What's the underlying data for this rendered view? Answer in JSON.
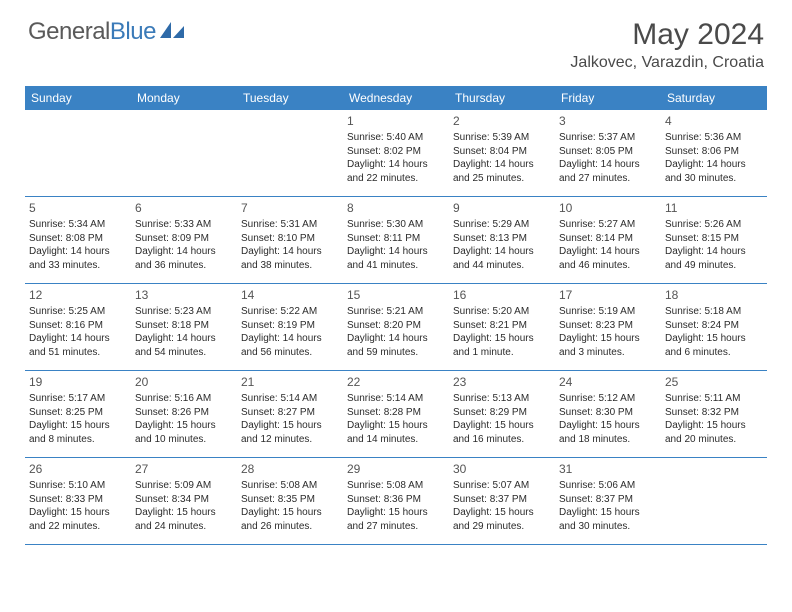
{
  "brand": {
    "text1": "General",
    "text2": "Blue"
  },
  "title": "May 2024",
  "location": "Jalkovec, Varazdin, Croatia",
  "colors": {
    "header_bg": "#3a82c4",
    "header_text": "#ffffff",
    "border": "#3a82c4",
    "text": "#2b2b2b",
    "title": "#4a4a4a",
    "logo_gray": "#5a5a5a",
    "logo_blue": "#3a7ab8"
  },
  "day_names": [
    "Sunday",
    "Monday",
    "Tuesday",
    "Wednesday",
    "Thursday",
    "Friday",
    "Saturday"
  ],
  "weeks": [
    [
      null,
      null,
      null,
      {
        "n": "1",
        "sr": "5:40 AM",
        "ss": "8:02 PM",
        "dl": "14 hours and 22 minutes."
      },
      {
        "n": "2",
        "sr": "5:39 AM",
        "ss": "8:04 PM",
        "dl": "14 hours and 25 minutes."
      },
      {
        "n": "3",
        "sr": "5:37 AM",
        "ss": "8:05 PM",
        "dl": "14 hours and 27 minutes."
      },
      {
        "n": "4",
        "sr": "5:36 AM",
        "ss": "8:06 PM",
        "dl": "14 hours and 30 minutes."
      }
    ],
    [
      {
        "n": "5",
        "sr": "5:34 AM",
        "ss": "8:08 PM",
        "dl": "14 hours and 33 minutes."
      },
      {
        "n": "6",
        "sr": "5:33 AM",
        "ss": "8:09 PM",
        "dl": "14 hours and 36 minutes."
      },
      {
        "n": "7",
        "sr": "5:31 AM",
        "ss": "8:10 PM",
        "dl": "14 hours and 38 minutes."
      },
      {
        "n": "8",
        "sr": "5:30 AM",
        "ss": "8:11 PM",
        "dl": "14 hours and 41 minutes."
      },
      {
        "n": "9",
        "sr": "5:29 AM",
        "ss": "8:13 PM",
        "dl": "14 hours and 44 minutes."
      },
      {
        "n": "10",
        "sr": "5:27 AM",
        "ss": "8:14 PM",
        "dl": "14 hours and 46 minutes."
      },
      {
        "n": "11",
        "sr": "5:26 AM",
        "ss": "8:15 PM",
        "dl": "14 hours and 49 minutes."
      }
    ],
    [
      {
        "n": "12",
        "sr": "5:25 AM",
        "ss": "8:16 PM",
        "dl": "14 hours and 51 minutes."
      },
      {
        "n": "13",
        "sr": "5:23 AM",
        "ss": "8:18 PM",
        "dl": "14 hours and 54 minutes."
      },
      {
        "n": "14",
        "sr": "5:22 AM",
        "ss": "8:19 PM",
        "dl": "14 hours and 56 minutes."
      },
      {
        "n": "15",
        "sr": "5:21 AM",
        "ss": "8:20 PM",
        "dl": "14 hours and 59 minutes."
      },
      {
        "n": "16",
        "sr": "5:20 AM",
        "ss": "8:21 PM",
        "dl": "15 hours and 1 minute."
      },
      {
        "n": "17",
        "sr": "5:19 AM",
        "ss": "8:23 PM",
        "dl": "15 hours and 3 minutes."
      },
      {
        "n": "18",
        "sr": "5:18 AM",
        "ss": "8:24 PM",
        "dl": "15 hours and 6 minutes."
      }
    ],
    [
      {
        "n": "19",
        "sr": "5:17 AM",
        "ss": "8:25 PM",
        "dl": "15 hours and 8 minutes."
      },
      {
        "n": "20",
        "sr": "5:16 AM",
        "ss": "8:26 PM",
        "dl": "15 hours and 10 minutes."
      },
      {
        "n": "21",
        "sr": "5:14 AM",
        "ss": "8:27 PM",
        "dl": "15 hours and 12 minutes."
      },
      {
        "n": "22",
        "sr": "5:14 AM",
        "ss": "8:28 PM",
        "dl": "15 hours and 14 minutes."
      },
      {
        "n": "23",
        "sr": "5:13 AM",
        "ss": "8:29 PM",
        "dl": "15 hours and 16 minutes."
      },
      {
        "n": "24",
        "sr": "5:12 AM",
        "ss": "8:30 PM",
        "dl": "15 hours and 18 minutes."
      },
      {
        "n": "25",
        "sr": "5:11 AM",
        "ss": "8:32 PM",
        "dl": "15 hours and 20 minutes."
      }
    ],
    [
      {
        "n": "26",
        "sr": "5:10 AM",
        "ss": "8:33 PM",
        "dl": "15 hours and 22 minutes."
      },
      {
        "n": "27",
        "sr": "5:09 AM",
        "ss": "8:34 PM",
        "dl": "15 hours and 24 minutes."
      },
      {
        "n": "28",
        "sr": "5:08 AM",
        "ss": "8:35 PM",
        "dl": "15 hours and 26 minutes."
      },
      {
        "n": "29",
        "sr": "5:08 AM",
        "ss": "8:36 PM",
        "dl": "15 hours and 27 minutes."
      },
      {
        "n": "30",
        "sr": "5:07 AM",
        "ss": "8:37 PM",
        "dl": "15 hours and 29 minutes."
      },
      {
        "n": "31",
        "sr": "5:06 AM",
        "ss": "8:37 PM",
        "dl": "15 hours and 30 minutes."
      },
      null
    ]
  ],
  "labels": {
    "sunrise": "Sunrise:",
    "sunset": "Sunset:",
    "daylight": "Daylight:"
  }
}
